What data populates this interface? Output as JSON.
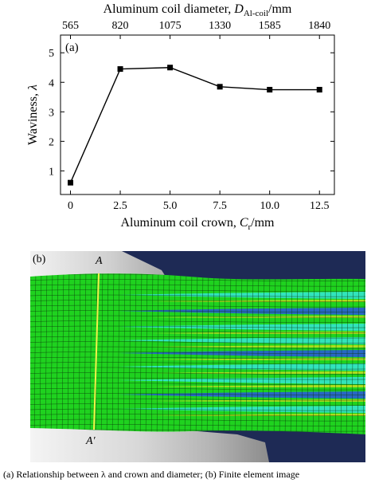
{
  "chart_data": {
    "type": "line",
    "panel_label": "(a)",
    "x": [
      0,
      2.5,
      5.0,
      7.5,
      10.0,
      12.5
    ],
    "x_tick_labels": [
      "0",
      "2.5",
      "5.0",
      "7.5",
      "10.0",
      "12.5"
    ],
    "top_tick_labels": [
      "565",
      "820",
      "1075",
      "1330",
      "1585",
      "1840"
    ],
    "series": [
      {
        "values": [
          0.6,
          4.45,
          4.5,
          3.85,
          3.75,
          3.75
        ]
      }
    ],
    "y_ticks": [
      1,
      2,
      3,
      4,
      5
    ],
    "xlim": [
      -0.5,
      13.25
    ],
    "ylim": [
      0.2,
      5.6
    ],
    "xlabel": {
      "text": "Aluminum coil crown, ",
      "var": "C",
      "sub": "r",
      "unit": "/mm"
    },
    "ylabel": {
      "text": "Waviness, ",
      "var": "λ"
    },
    "top_label": {
      "text": "Aluminum coil diameter, ",
      "var": "D",
      "sub": "Al-coil",
      "unit": "/mm"
    },
    "grid": false,
    "marker": "square",
    "line_color": "#000000"
  },
  "fem": {
    "panel_label": "(b)",
    "label_top": "A",
    "label_bottom": "A′",
    "colors": {
      "mesh_green": "#1fd21f",
      "mesh_line": "#0a3a0a",
      "cyan": "#35e6d8",
      "blue": "#2a55e0",
      "yellow": "#e8e020",
      "section_line": "#f2f24a",
      "roll_light": "#dcdcdc",
      "background": "#1e2a55"
    }
  },
  "caption": "(a) Relationship between λ and crown and diameter; (b) Finite element image"
}
